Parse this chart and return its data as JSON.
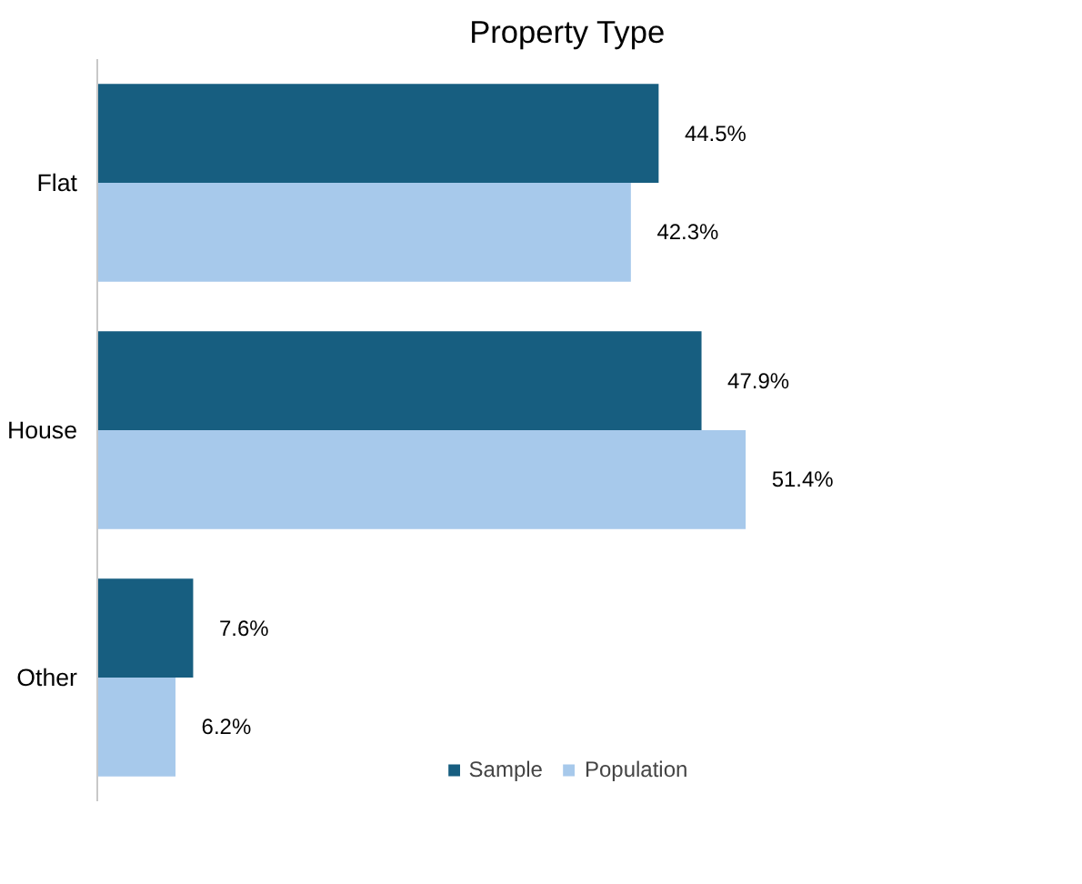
{
  "chart_data": {
    "type": "bar",
    "orientation": "horizontal",
    "title": "Property Type",
    "categories": [
      "Flat",
      "House",
      "Other"
    ],
    "tick_labels": "y",
    "series": [
      {
        "name": "Sample",
        "color": "#175e80",
        "values": [
          44.5,
          47.9,
          7.6
        ],
        "value_labels": [
          "44.5%",
          "47.9%",
          "7.6%"
        ]
      },
      {
        "name": "Population",
        "color": "#a7c9eb",
        "values": [
          42.3,
          51.4,
          6.2
        ],
        "value_labels": [
          "42.3%",
          "51.4%",
          "6.2%"
        ]
      }
    ],
    "legend": "bottom",
    "grid": false
  }
}
